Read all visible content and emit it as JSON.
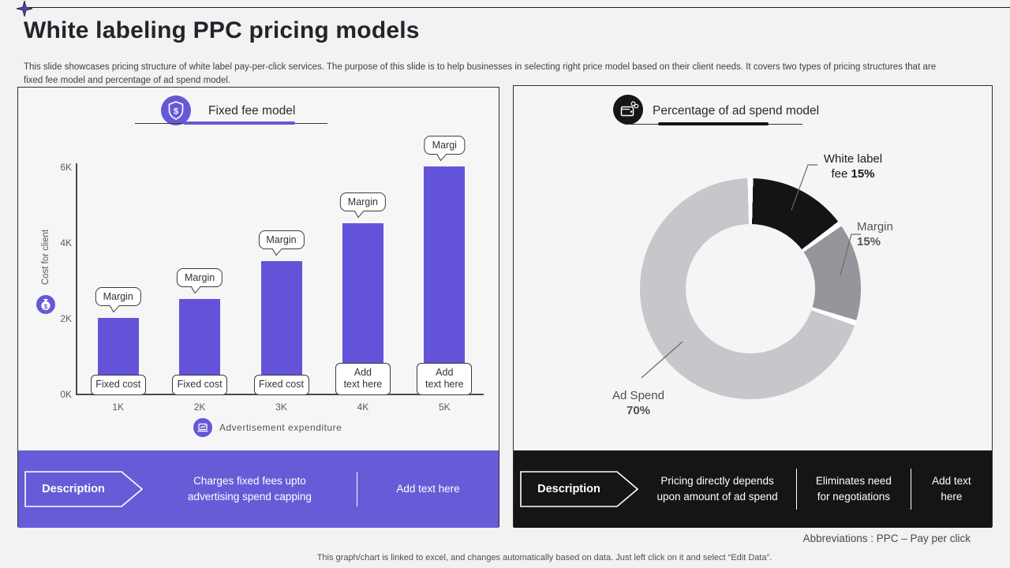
{
  "slide": {
    "title": "White labeling PPC pricing models",
    "subtitle": "This slide showcases pricing structure of white label pay-per-click services. The purpose of this slide is to help businesses in selecting right price model based on their client needs. It covers two types of pricing structures that are\nfixed fee model and percentage of ad spend model.",
    "abbreviation_note": "Abbreviations : PPC – Pay per click",
    "bottom_note": "This graph/chart is linked to excel, and changes automatically based on data. Just left click on it and select “Edit Data”."
  },
  "left_panel": {
    "header": {
      "title": "Fixed fee model",
      "icon": "shield-dollar-icon",
      "accent_color": "#6459d6"
    },
    "legend": {
      "icon": "ad-display-icon",
      "label": "Advertisement  expenditure"
    },
    "description_bar": {
      "label": "Description",
      "items": [
        "Charges fixed fees upto\nadvertising spend capping",
        "Add text here"
      ],
      "background": "#675cd8"
    }
  },
  "right_panel": {
    "header": {
      "title": "Percentage of ad spend model",
      "icon": "wallet-icon",
      "accent_color": "#141414"
    },
    "description_bar": {
      "label": "Description",
      "items": [
        "Pricing directly depends\nupon amount of ad spend",
        "Eliminates need\nfor negotiations",
        "Add text\nhere"
      ],
      "background": "#151515"
    }
  },
  "chart_data": [
    {
      "type": "bar",
      "title": "Fixed fee model",
      "categories": [
        "1K",
        "2K",
        "3K",
        "4K",
        "5K"
      ],
      "values": [
        2000,
        2500,
        3500,
        4500,
        6000
      ],
      "bar_color": "#6353d9",
      "xlabel": "Advertisement  expenditure",
      "ylabel": "Cost for client",
      "ylim": [
        0,
        6000
      ],
      "yticks": [
        {
          "label": "0K",
          "value": 0
        },
        {
          "label": "2K",
          "value": 2000
        },
        {
          "label": "4K",
          "value": 4000
        },
        {
          "label": "6K",
          "value": 6000
        }
      ],
      "grid": false,
      "legend_position": "bottom",
      "top_callouts": [
        "Margin",
        "Margin",
        "Margin",
        "Margin",
        "Margi"
      ],
      "bottom_labels": [
        "Fixed cost",
        "Fixed cost",
        "Fixed cost",
        "Add\ntext here",
        "Add\ntext here"
      ]
    },
    {
      "type": "pie",
      "donut": true,
      "title": "Percentage of ad spend model",
      "slices": [
        {
          "label": "White label fee",
          "value": 15,
          "color": "#141414"
        },
        {
          "label": "Margin",
          "value": 15,
          "color": "#96959c"
        },
        {
          "label": "Ad Spend",
          "value": 70,
          "color": "#c7c6cb"
        }
      ],
      "label_display": [
        {
          "line1": "White label",
          "line2": "fee ",
          "value": "15%"
        },
        {
          "line1": "Margin",
          "line2": "",
          "value": "15%"
        },
        {
          "line1": "Ad Spend",
          "line2": "",
          "value": "70%"
        }
      ]
    }
  ]
}
